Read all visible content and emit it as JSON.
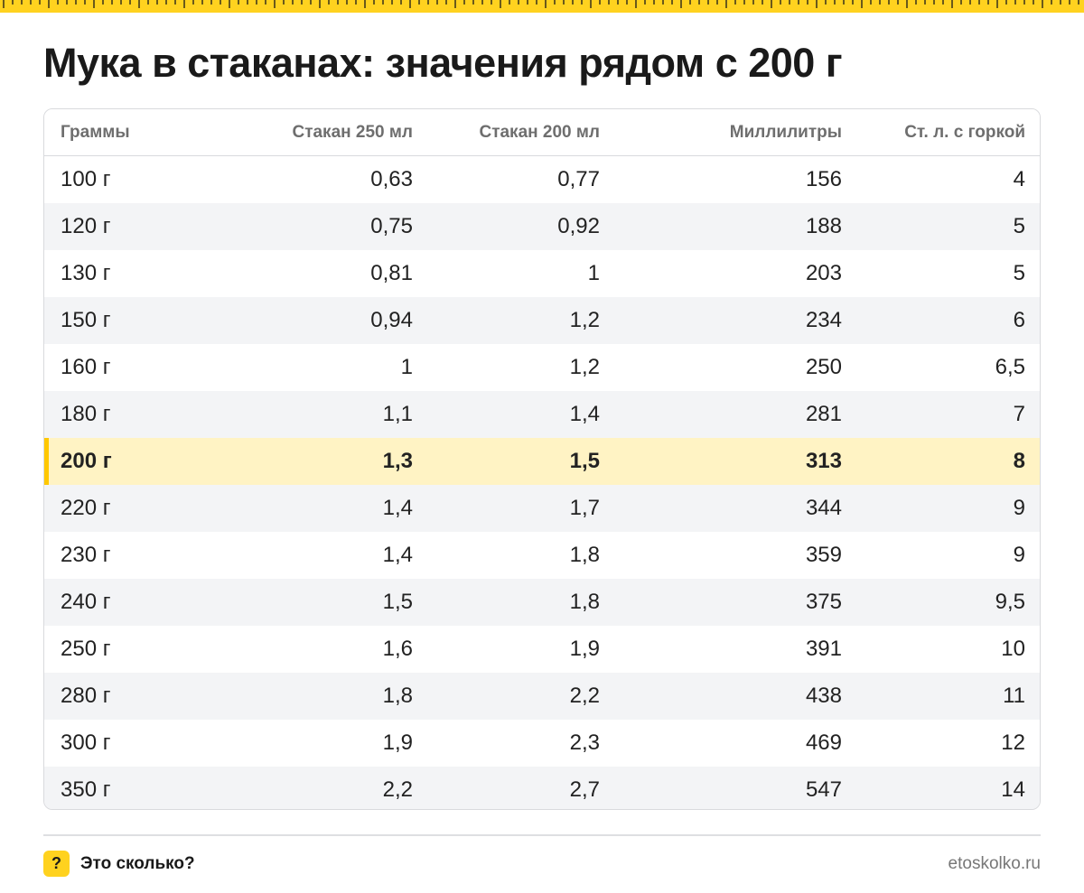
{
  "title": "Мука в стаканах: значения рядом с 200 г",
  "colors": {
    "accent": "#ffd21f",
    "highlight_row": "#fff3c4",
    "highlight_bar": "#ffc800"
  },
  "table": {
    "headers": [
      "Граммы",
      "Стакан 250 мл",
      "Стакан 200 мл",
      "Миллилитры",
      "Ст. л. с горкой"
    ],
    "highlighted_row": "200 г",
    "rows": [
      [
        "100 г",
        "0,63",
        "0,77",
        "156",
        "4"
      ],
      [
        "120 г",
        "0,75",
        "0,92",
        "188",
        "5"
      ],
      [
        "130 г",
        "0,81",
        "1",
        "203",
        "5"
      ],
      [
        "150 г",
        "0,94",
        "1,2",
        "234",
        "6"
      ],
      [
        "160 г",
        "1",
        "1,2",
        "250",
        "6,5"
      ],
      [
        "180 г",
        "1,1",
        "1,4",
        "281",
        "7"
      ],
      [
        "200 г",
        "1,3",
        "1,5",
        "313",
        "8"
      ],
      [
        "220 г",
        "1,4",
        "1,7",
        "344",
        "9"
      ],
      [
        "230 г",
        "1,4",
        "1,8",
        "359",
        "9"
      ],
      [
        "240 г",
        "1,5",
        "1,8",
        "375",
        "9,5"
      ],
      [
        "250 г",
        "1,6",
        "1,9",
        "391",
        "10"
      ],
      [
        "280 г",
        "1,8",
        "2,2",
        "438",
        "11"
      ],
      [
        "300 г",
        "1,9",
        "2,3",
        "469",
        "12"
      ],
      [
        "350 г",
        "2,2",
        "2,7",
        "547",
        "14"
      ]
    ]
  },
  "footer": {
    "logo_glyph": "?",
    "brand": "Это сколько?",
    "site": "etoskolko.ru",
    "logo_icon": "question-mark-icon"
  }
}
